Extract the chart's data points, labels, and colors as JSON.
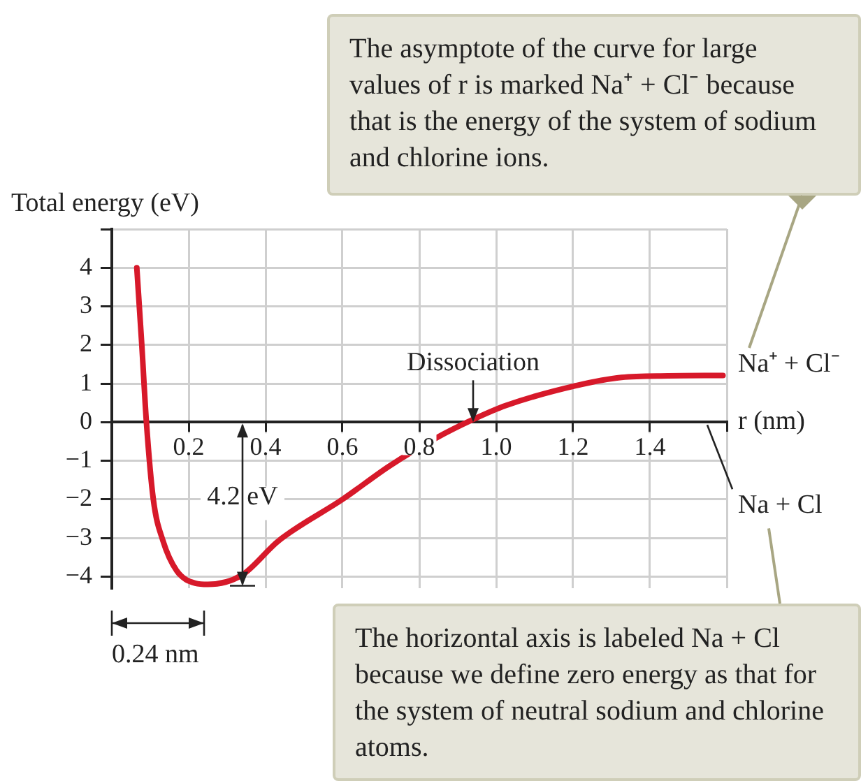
{
  "chart_data": {
    "type": "line",
    "xlabel": "r (nm)",
    "ylabel": "Total energy (eV)",
    "x": [
      0.065,
      0.078,
      0.09,
      0.108,
      0.133,
      0.169,
      0.217,
      0.25,
      0.337,
      0.434,
      0.603,
      0.723,
      0.844,
      0.94,
      1.025,
      1.205,
      1.326,
      1.447,
      1.59
    ],
    "series": [
      {
        "color": "#d7192a",
        "values": [
          4.0,
          2.0,
          0.0,
          -2.0,
          -3.07,
          -3.85,
          -4.17,
          -4.2,
          -3.97,
          -3.07,
          -1.98,
          -1.13,
          -0.41,
          0.07,
          0.43,
          0.94,
          1.16,
          1.2,
          1.21
        ]
      }
    ],
    "xlim": [
      0,
      1.6
    ],
    "ylim": [
      -4.3,
      5
    ],
    "xticks": [
      {
        "value": 0,
        "label": null
      },
      0.2,
      0.4,
      0.6,
      0.8,
      {
        "value": 1.0,
        "label": "1.0"
      },
      1.2,
      1.4,
      {
        "value": 1.6,
        "label": null
      }
    ],
    "yticks": [
      -4,
      -3,
      -2,
      -1,
      0,
      1,
      2,
      3,
      4,
      {
        "value": 5,
        "label": null
      }
    ],
    "grid": true,
    "legend": false,
    "marker": "none",
    "line_style": "solid",
    "annotations": [
      "The asymptote of the curve for large values of r is marked Na⁺ + Cl⁻ because that is the energy of the system of sodium and chlorine ions.",
      "The horizontal axis is labeled Na + Cl because we define zero energy as that for the system of neutral sodium and chlorine atoms.",
      {
        "text": "Dissociation",
        "x": 0.94,
        "y": 0
      },
      {
        "text": "4.2 eV",
        "x": 0.34,
        "y": -4.2
      },
      {
        "text": "0.24 nm",
        "x": 0.24,
        "y": -4.2
      },
      {
        "text": "Na⁺ + Cl⁻",
        "x": 1.6,
        "y": 1.2
      },
      "Na + Cl"
    ]
  }
}
